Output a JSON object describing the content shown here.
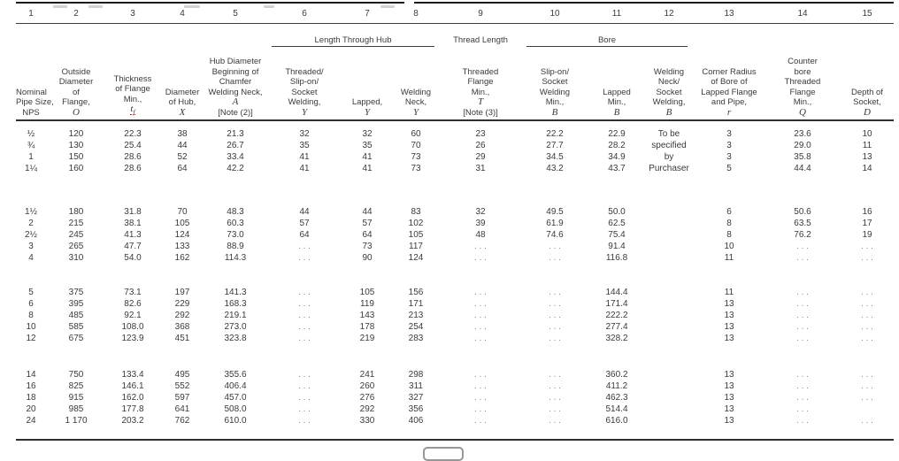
{
  "table": {
    "column_numbers": [
      "1",
      "2",
      "3",
      "4",
      "5",
      "6",
      "7",
      "8",
      "9",
      "10",
      "11",
      "12",
      "13",
      "14",
      "15"
    ],
    "group_headers": [
      {
        "label": "Length Through Hub"
      },
      {
        "label": "Thread Length"
      },
      {
        "label": "Bore"
      }
    ],
    "column_headers": [
      {
        "lines": [
          "Nominal",
          "Pipe Size,"
        ],
        "symbol": "NPS",
        "symbol_italic": false
      },
      {
        "lines": [
          "Outside",
          "Diameter",
          "of",
          "Flange,"
        ],
        "symbol": "O",
        "symbol_italic": true
      },
      {
        "lines": [
          "Thickness",
          "of Flange",
          "Min.,"
        ],
        "symbol": "t",
        "symbol_sub": "f",
        "symbol_italic": true,
        "symbol_underline": "red-dotted"
      },
      {
        "lines": [
          "Diameter",
          "of Hub,"
        ],
        "symbol": "X",
        "symbol_italic": true
      },
      {
        "lines": [
          "Hub Diameter",
          "Beginning of",
          "Chamfer",
          "Welding Neck,"
        ],
        "symbol": "A",
        "symbol_italic": true,
        "note": "[Note (2)]"
      },
      {
        "lines": [
          "Threaded/",
          "Slip-on/",
          "Socket",
          "Welding,"
        ],
        "symbol": "Y",
        "symbol_italic": true
      },
      {
        "lines": [
          "Lapped,"
        ],
        "symbol": "Y",
        "symbol_italic": true
      },
      {
        "lines": [
          "Welding",
          "Neck,"
        ],
        "symbol": "Y",
        "symbol_italic": true
      },
      {
        "lines": [
          "Threaded",
          "Flange",
          "Min.,"
        ],
        "symbol": "T",
        "symbol_italic": true,
        "note": "[Note (3)]"
      },
      {
        "lines": [
          "Slip-on/",
          "Socket",
          "Welding",
          "Min.,"
        ],
        "symbol": "B",
        "symbol_italic": true
      },
      {
        "lines": [
          "Lapped",
          "Min.,"
        ],
        "symbol": "B",
        "symbol_italic": true
      },
      {
        "lines": [
          "Welding",
          "Neck/",
          "Socket",
          "Welding,"
        ],
        "symbol": "B",
        "symbol_italic": true
      },
      {
        "lines": [
          "Corner Radius",
          "of Bore of",
          "Lapped Flange",
          "and Pipe,"
        ],
        "symbol": "r",
        "symbol_italic": true
      },
      {
        "lines": [
          "Counter",
          "bore",
          "Threaded",
          "Flange",
          "Min.,"
        ],
        "symbol": "Q",
        "symbol_italic": true
      },
      {
        "lines": [
          "Depth of",
          "Socket,"
        ],
        "symbol": "D",
        "symbol_italic": true
      }
    ],
    "ellipsis": ". . .",
    "row_groups": [
      {
        "rows": [
          [
            "½",
            "120",
            "22.3",
            "38",
            "21.3",
            "32",
            "32",
            "60",
            "23",
            "22.2",
            "22.9",
            "To be",
            "3",
            "23.6",
            "10"
          ],
          [
            "¾",
            "130",
            "25.4",
            "44",
            "26.7",
            "35",
            "35",
            "70",
            "26",
            "27.7",
            "28.2",
            "specified",
            "3",
            "29.0",
            "11"
          ],
          [
            "1",
            "150",
            "28.6",
            "52",
            "33.4",
            "41",
            "41",
            "73",
            "29",
            "34.5",
            "34.9",
            "by",
            "3",
            "35.8",
            "13"
          ],
          [
            "1¼",
            "160",
            "28.6",
            "64",
            "42.2",
            "41",
            "41",
            "73",
            "31",
            "43.2",
            "43.7",
            "Purchaser",
            "5",
            "44.4",
            "14"
          ]
        ]
      },
      {
        "rows": [
          [
            "1½",
            "180",
            "31.8",
            "70",
            "48.3",
            "44",
            "44",
            "83",
            "32",
            "49.5",
            "50.0",
            "",
            "6",
            "50.6",
            "16"
          ],
          [
            "2",
            "215",
            "38.1",
            "105",
            "60.3",
            "57",
            "57",
            "102",
            "39",
            "61.9",
            "62.5",
            "",
            "8",
            "63.5",
            "17"
          ],
          [
            "2½",
            "245",
            "41.3",
            "124",
            "73.0",
            "64",
            "64",
            "105",
            "48",
            "74.6",
            "75.4",
            "",
            "8",
            "76.2",
            "19"
          ],
          [
            "3",
            "265",
            "47.7",
            "133",
            "88.9",
            ". . .",
            "73",
            "117",
            ". . .",
            ". . .",
            "91.4",
            "",
            "10",
            ". . .",
            ". . ."
          ],
          [
            "4",
            "310",
            "54.0",
            "162",
            "114.3",
            ". . .",
            "90",
            "124",
            ". . .",
            ". . .",
            "116.8",
            "",
            "11",
            ". . .",
            ". . ."
          ]
        ]
      },
      {
        "rows": [
          [
            "5",
            "375",
            "73.1",
            "197",
            "141.3",
            ". . .",
            "105",
            "156",
            ". . .",
            ". . .",
            "144.4",
            "",
            "11",
            ". . .",
            ". . ."
          ],
          [
            "6",
            "395",
            "82.6",
            "229",
            "168.3",
            ". . .",
            "119",
            "171",
            ". . .",
            ". . .",
            "171.4",
            "",
            "13",
            ". . .",
            ". . ."
          ],
          [
            "8",
            "485",
            "92.1",
            "292",
            "219.1",
            ". . .",
            "143",
            "213",
            ". . .",
            ". . .",
            "222.2",
            "",
            "13",
            ". . .",
            ". . ."
          ],
          [
            "10",
            "585",
            "108.0",
            "368",
            "273.0",
            ". . .",
            "178",
            "254",
            ". . .",
            ". . .",
            "277.4",
            "",
            "13",
            ". . .",
            ". . ."
          ],
          [
            "12",
            "675",
            "123.9",
            "451",
            "323.8",
            ". . .",
            "219",
            "283",
            ". . .",
            ". . .",
            "328.2",
            "",
            "13",
            ". . .",
            ". . ."
          ]
        ]
      },
      {
        "rows": [
          [
            "14",
            "750",
            "133.4",
            "495",
            "355.6",
            ". . .",
            "241",
            "298",
            ". . .",
            ". . .",
            "360.2",
            "",
            "13",
            ". . .",
            ". . ."
          ],
          [
            "16",
            "825",
            "146.1",
            "552",
            "406.4",
            ". . .",
            "260",
            "311",
            ". . .",
            ". . .",
            "411.2",
            "",
            "13",
            ". . .",
            ". . ."
          ],
          [
            "18",
            "915",
            "162.0",
            "597",
            "457.0",
            ". . .",
            "276",
            "327",
            ". . .",
            ". . .",
            "462.3",
            "",
            "13",
            ". . .",
            ". . ."
          ],
          [
            "20",
            "985",
            "177.8",
            "641",
            "508.0",
            ". . .",
            "292",
            "356",
            ". . .",
            ". . .",
            "514.4",
            "",
            "13",
            ". . .",
            ""
          ],
          [
            "24",
            "1 170",
            "203.2",
            "762",
            "610.0",
            ". . .",
            "330",
            "406",
            ". . .",
            ". . .",
            "616.0",
            "",
            "13",
            ". . .",
            ". . ."
          ]
        ]
      }
    ]
  },
  "colors": {
    "text": "#3a3a3a",
    "rule": "#2e2e2e",
    "ellipsis_dots": "#8a8a8a",
    "spellcheck_underline": "#cc2a22"
  }
}
